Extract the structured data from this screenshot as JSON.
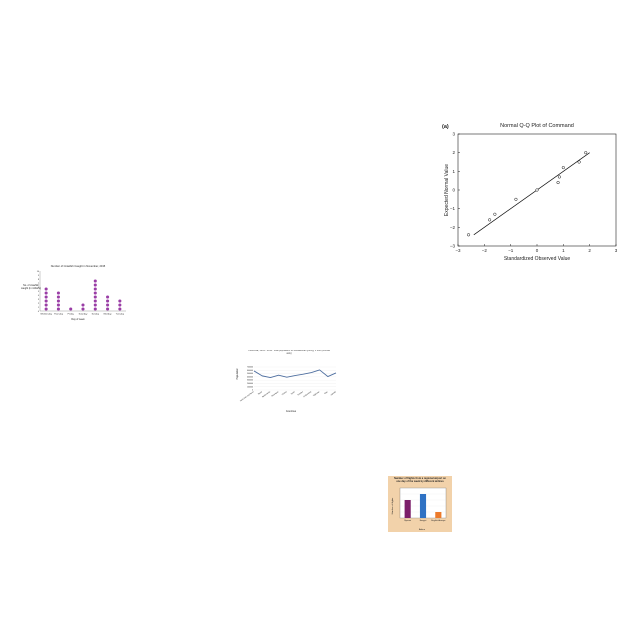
{
  "chart_data": [
    {
      "type": "scatter",
      "panel_label": "(a)",
      "title": "Normal Q-Q Plot of Command",
      "xlabel": "Standardized Observed Value",
      "ylabel": "Expected Normal Value",
      "xlim": [
        -3,
        3
      ],
      "ylim": [
        -3,
        3
      ],
      "xticks": [
        "−3",
        "−2",
        "−1",
        "0",
        "1",
        "2",
        "3"
      ],
      "yticks": [
        "−3",
        "−2",
        "−1",
        "0",
        "1",
        "2",
        "3"
      ],
      "points": [
        {
          "x": -2.6,
          "y": -2.4
        },
        {
          "x": -1.8,
          "y": -1.6
        },
        {
          "x": -1.6,
          "y": -1.3
        },
        {
          "x": -0.8,
          "y": -0.5
        },
        {
          "x": 0.0,
          "y": 0.0
        },
        {
          "x": 0.8,
          "y": 0.4
        },
        {
          "x": 0.85,
          "y": 0.7
        },
        {
          "x": 1.0,
          "y": 1.2
        },
        {
          "x": 1.6,
          "y": 1.5
        },
        {
          "x": 1.85,
          "y": 2.0
        }
      ],
      "reference_line": {
        "x1": -2.4,
        "y1": -2.4,
        "x2": 2.0,
        "y2": 2.0
      },
      "grid": false
    },
    {
      "type": "scatter",
      "subtype": "dot-plot",
      "title": "Number of Crawfish Caught in November, 2015",
      "xlabel": "Day of week",
      "ylabel": "No. of crawfish caught (in millions)",
      "categories": [
        "Wednesday",
        "Thursday",
        "Friday",
        "Saturday",
        "Sunday",
        "Monday",
        "Tuesday"
      ],
      "values": [
        6,
        5,
        1,
        2,
        8,
        4,
        3
      ],
      "ylim": [
        0,
        10
      ],
      "yticks": [
        "0",
        "1",
        "2",
        "3",
        "4",
        "5",
        "6",
        "7",
        "8",
        "9",
        "10"
      ],
      "color": "#9a3ea6"
    },
    {
      "type": "line",
      "title": "Colombia, 1961 - 2011: Total population for Ecuadorian young, 1 000 (vertical axis)",
      "xlabel": "Countries",
      "ylabel": "Population",
      "categories": [
        "Saint Kitts and Nevis",
        "Nepal",
        "Netherlands",
        "Nicaragua",
        "Poland",
        "Spain",
        "Sweden",
        "Switzerland",
        "Tajikistan",
        "Togo",
        "Uganda"
      ],
      "values": [
        580,
        430,
        380,
        450,
        390,
        440,
        480,
        530,
        610,
        410,
        520
      ],
      "ylim": [
        0,
        700
      ],
      "yticks": [
        "0",
        "100000",
        "200000",
        "300000",
        "400000",
        "500000",
        "600000",
        "700000"
      ],
      "color": "#4f6fa0"
    },
    {
      "type": "bar",
      "title": "Number of flights from a regional airport on one day of the week by different airlines",
      "xlabel": "Airline",
      "ylabel": "Number of flights",
      "categories": [
        "Ryanair",
        "Easyjet",
        "English Airways"
      ],
      "values": [
        6,
        8,
        2
      ],
      "ylim": [
        0,
        10
      ],
      "colors": [
        "#7b1e6a",
        "#2f72c4",
        "#ec7a2a"
      ],
      "background": "#f2d2aa"
    }
  ]
}
